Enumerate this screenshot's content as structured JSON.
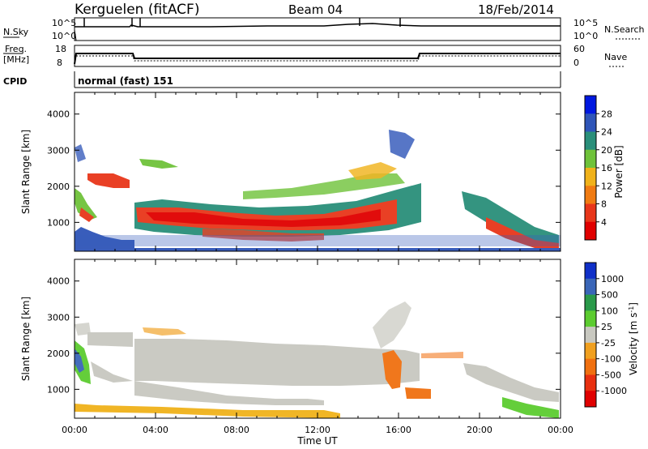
{
  "header": {
    "station": "Kerguelen (fitACF)",
    "beam": "Beam 04",
    "date": "18/Feb/2014"
  },
  "top_panels": {
    "nsky_label": "N.Sky",
    "nsky_ticks": [
      "10^5",
      "10^0"
    ],
    "nsearch_label": "N.Search",
    "nsearch_ticks": [
      "10^5",
      "10^0"
    ],
    "freq_label_1": "Freq.",
    "freq_label_2": "[MHz]",
    "freq_ticks": [
      "18",
      "8"
    ],
    "nave_label": "Nave",
    "nave_ticks": [
      "60",
      "0"
    ],
    "cpid_label": "CPID",
    "cpid_value": "normal (fast) 151"
  },
  "chart_data": [
    {
      "type": "heatmap",
      "title": "",
      "ylabel": "Slant Range [km]",
      "ylim": [
        200,
        4600
      ],
      "yticks": [
        "1000",
        "2000",
        "3000",
        "4000"
      ],
      "xlim": [
        "00:00",
        "24:00"
      ],
      "colorbar": {
        "label": "Power [dB]",
        "ticks": [
          "4",
          "8",
          "12",
          "16",
          "20",
          "24",
          "28"
        ],
        "colors": [
          "#0018e0",
          "#2f55b8",
          "#2a8f7a",
          "#6fc23a",
          "#f0b21a",
          "#f07b12",
          "#e8361a",
          "#e00000"
        ]
      }
    },
    {
      "type": "heatmap",
      "title": "",
      "ylabel": "Slant Range [km]",
      "ylim": [
        200,
        4600
      ],
      "yticks": [
        "1000",
        "2000",
        "3000",
        "4000"
      ],
      "xlabel": "Time UT",
      "xticks": [
        "00:00",
        "04:00",
        "08:00",
        "12:00",
        "16:00",
        "20:00",
        "00:00"
      ],
      "colorbar": {
        "label": "Velocity [m s",
        "label_sup": "-1",
        "label_end": "]",
        "ticks": [
          "1000",
          "500",
          "100",
          "25",
          "-25",
          "-100",
          "-500",
          "-1000"
        ],
        "colors": [
          "#1030c8",
          "#3a66b8",
          "#2a9a4a",
          "#5ccc30",
          "#c8c8c0",
          "#f0a020",
          "#f07010",
          "#e83010",
          "#e00000"
        ]
      }
    }
  ]
}
